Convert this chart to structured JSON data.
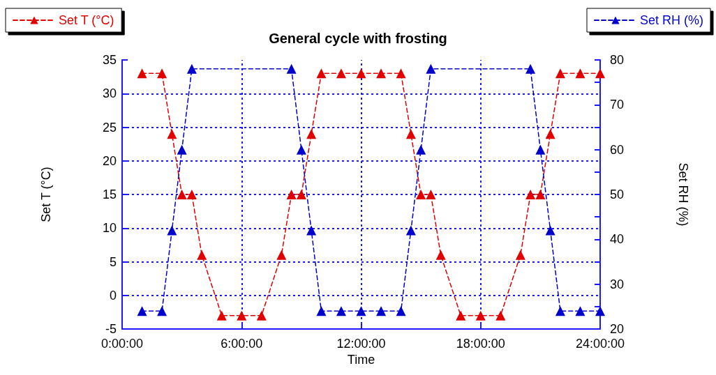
{
  "chart_data": {
    "type": "line",
    "title": "General cycle with frosting",
    "xlabel": "Time",
    "ylabel": "Set T (°C)",
    "y2label": "Set RH (%)",
    "x": [
      1,
      2,
      2.5,
      3,
      3.5,
      4,
      5,
      6,
      7,
      8,
      8.5,
      9,
      9.5,
      10,
      11,
      12,
      13,
      14,
      14.5,
      15,
      15.5,
      16,
      17,
      18,
      19,
      20,
      20.5,
      21,
      21.5,
      22,
      23,
      24
    ],
    "series": [
      {
        "name": "Set T (°C)",
        "color": "#e00000",
        "values": [
          33,
          33,
          24,
          15,
          15,
          6,
          -3,
          -3,
          -3,
          6,
          15,
          15,
          24,
          33,
          33,
          33,
          33,
          33,
          24,
          15,
          15,
          6,
          -3,
          -3,
          -3,
          6,
          15,
          15,
          24,
          33,
          33,
          33
        ]
      },
      {
        "name": "Set RH (%)",
        "color": "#0000cc",
        "axis": "y2",
        "x": [
          1,
          2,
          2.5,
          3,
          3.5,
          8.5,
          9,
          9.5,
          10,
          11,
          12,
          13,
          14,
          14.5,
          15,
          15.5,
          20.5,
          21,
          21.5,
          22,
          23,
          24
        ],
        "values": [
          24,
          24,
          42,
          60,
          78,
          78,
          60,
          42,
          24,
          24,
          24,
          24,
          24,
          42,
          60,
          78,
          78,
          60,
          42,
          24,
          24,
          24
        ]
      }
    ],
    "xlim": [
      0,
      24
    ],
    "xticks": [
      {
        "value": 0,
        "label": "0:00:00"
      },
      {
        "value": 6,
        "label": "6:00:00"
      },
      {
        "value": 12,
        "label": "12:00:00"
      },
      {
        "value": 18,
        "label": "18:00:00"
      },
      {
        "value": 24,
        "label": "24:00:00"
      }
    ],
    "ylim": [
      -5,
      35
    ],
    "yticks": [
      -5,
      0,
      5,
      10,
      15,
      20,
      25,
      30,
      35
    ],
    "y2lim": [
      20,
      80
    ],
    "y2ticks": [
      20,
      {
        "value": 25,
        "label": null
      },
      30,
      {
        "value": 35,
        "label": null
      },
      40,
      {
        "value": 45,
        "label": null
      },
      50,
      {
        "value": 55,
        "label": null
      },
      60,
      {
        "value": 65,
        "label": null
      },
      70,
      {
        "value": 75,
        "label": null
      },
      80
    ],
    "grid": true,
    "legend": "top",
    "marker": "triangle",
    "line_style": "dashed"
  }
}
